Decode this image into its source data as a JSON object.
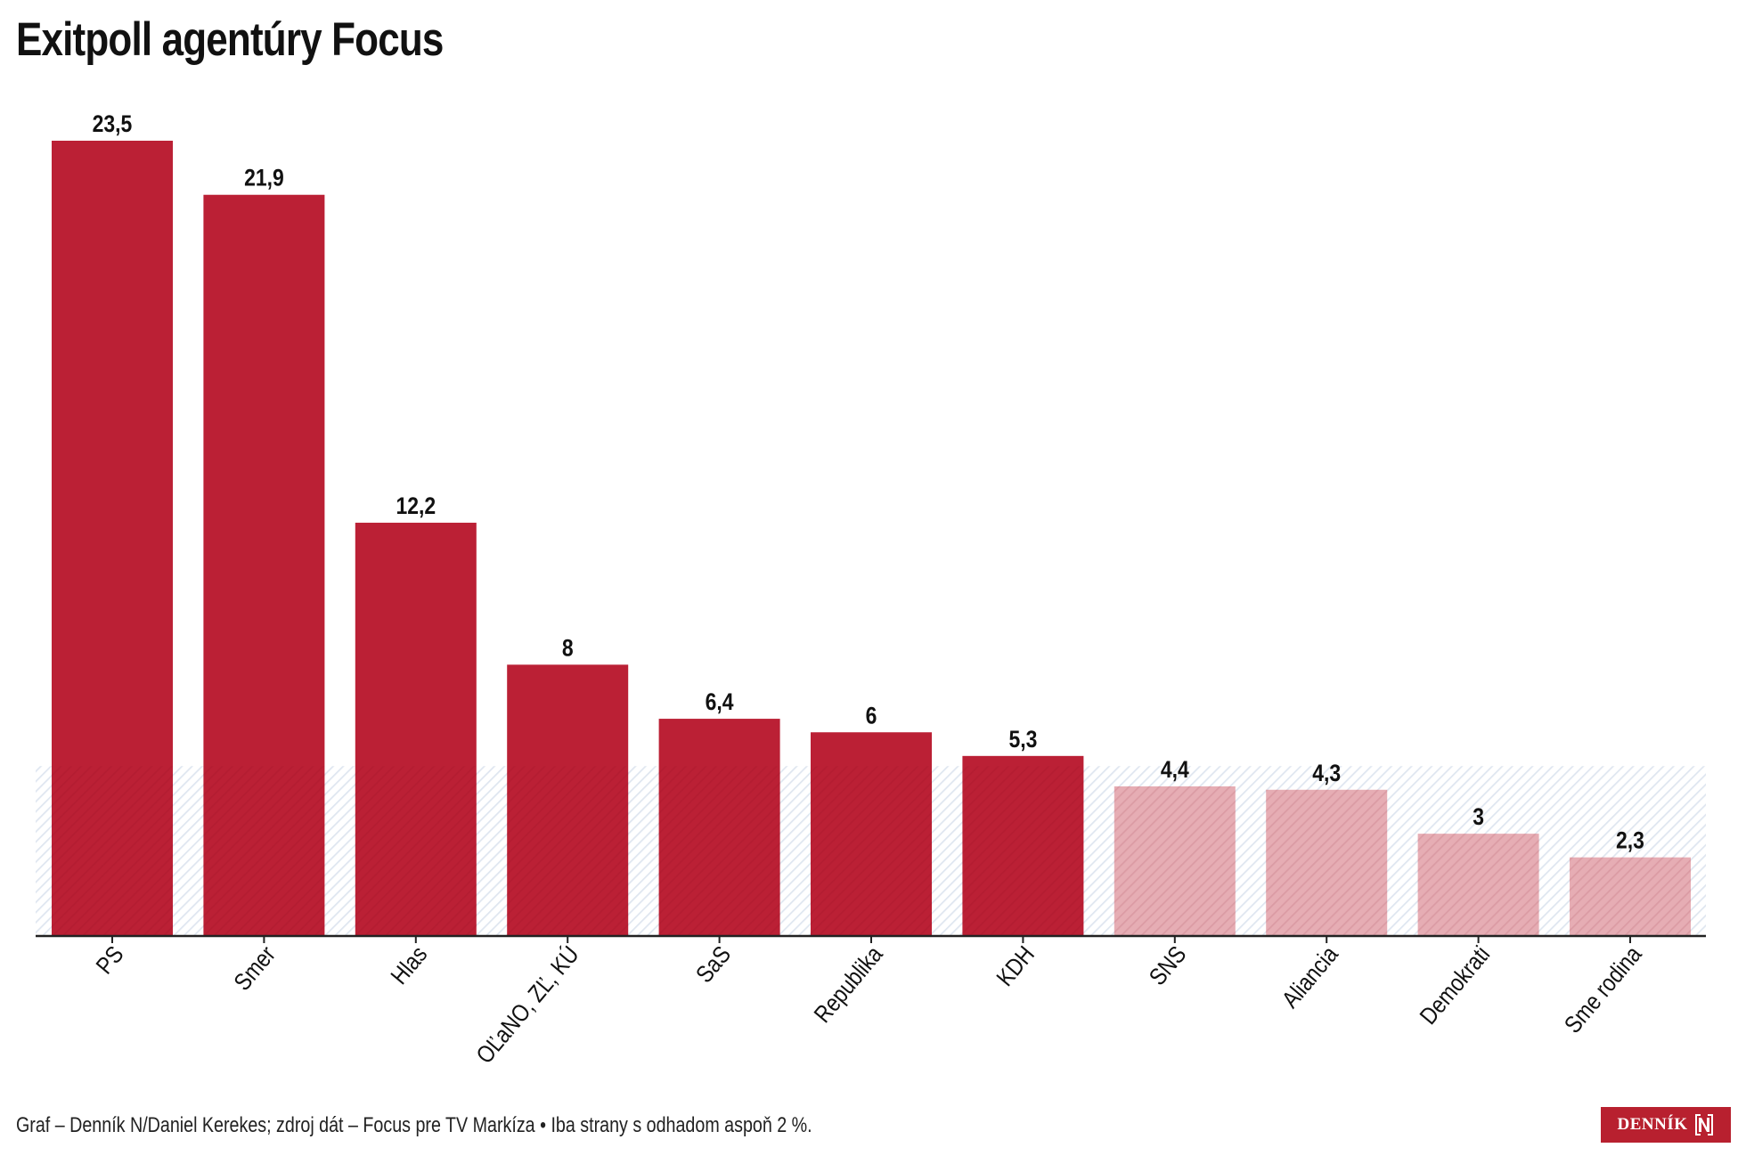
{
  "title": "Exitpoll agentúry Focus",
  "footer": "Graf – Denník N/Daniel Kerekes; zdroj dát – Focus pre TV Markíza • Iba strany s odhadom aspoň 2 %.",
  "logo": {
    "text": "DENNÍK",
    "icon": "denník-n-logo-icon"
  },
  "colors": {
    "above_threshold": "#bb2035",
    "below_threshold": "#e6adb4",
    "threshold_band": "#e6ecf4",
    "axis": "#222222"
  },
  "chart_data": {
    "type": "bar",
    "title": "Exitpoll agentúry Focus",
    "xlabel": "",
    "ylabel": "",
    "ylim": [
      0,
      23.5
    ],
    "grid": false,
    "legend": "none",
    "threshold": {
      "value": 5,
      "label": "hatched band below 5 %"
    },
    "categories": [
      "PS",
      "Smer",
      "Hlas",
      "OĽaNO, ZĽ, KÚ",
      "SaS",
      "Republika",
      "KDH",
      "SNS",
      "Aliancia",
      "Demokrati",
      "Sme rodina"
    ],
    "values": [
      23.5,
      21.9,
      12.2,
      8,
      6.4,
      6,
      5.3,
      4.4,
      4.3,
      3,
      2.3
    ],
    "value_labels": [
      "23,5",
      "21,9",
      "12,2",
      "8",
      "6,4",
      "6",
      "5,3",
      "4,4",
      "4,3",
      "3",
      "2,3"
    ]
  }
}
